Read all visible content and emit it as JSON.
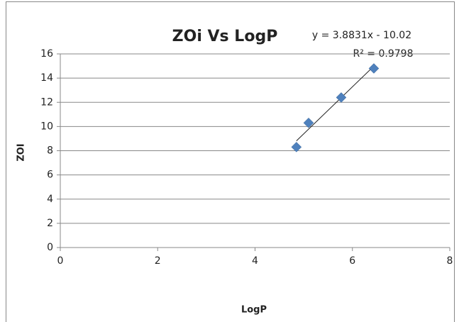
{
  "chart_data": {
    "type": "scatter",
    "title": "ZOi Vs LogP",
    "x_label": "LogP",
    "y_label": "ZOI",
    "annotations": [
      "y = 3.8831x - 10.02",
      "R² = 0.9798"
    ],
    "series": [
      {
        "name": "ZOI",
        "color": "#4f81bd",
        "x": [
          4.85,
          5.1,
          5.77,
          6.44
        ],
        "values": [
          8.3,
          10.3,
          12.4,
          14.8
        ]
      }
    ],
    "trendline": {
      "slope": 3.8831,
      "intercept": -10.02,
      "color": "#222222"
    },
    "xlim": [
      0,
      8
    ],
    "xticks": [
      0,
      2,
      4,
      6,
      8
    ],
    "ylim": [
      0,
      16
    ],
    "yticks": [
      0,
      2,
      4,
      6,
      8,
      10,
      12,
      14,
      16
    ],
    "grid": true
  }
}
